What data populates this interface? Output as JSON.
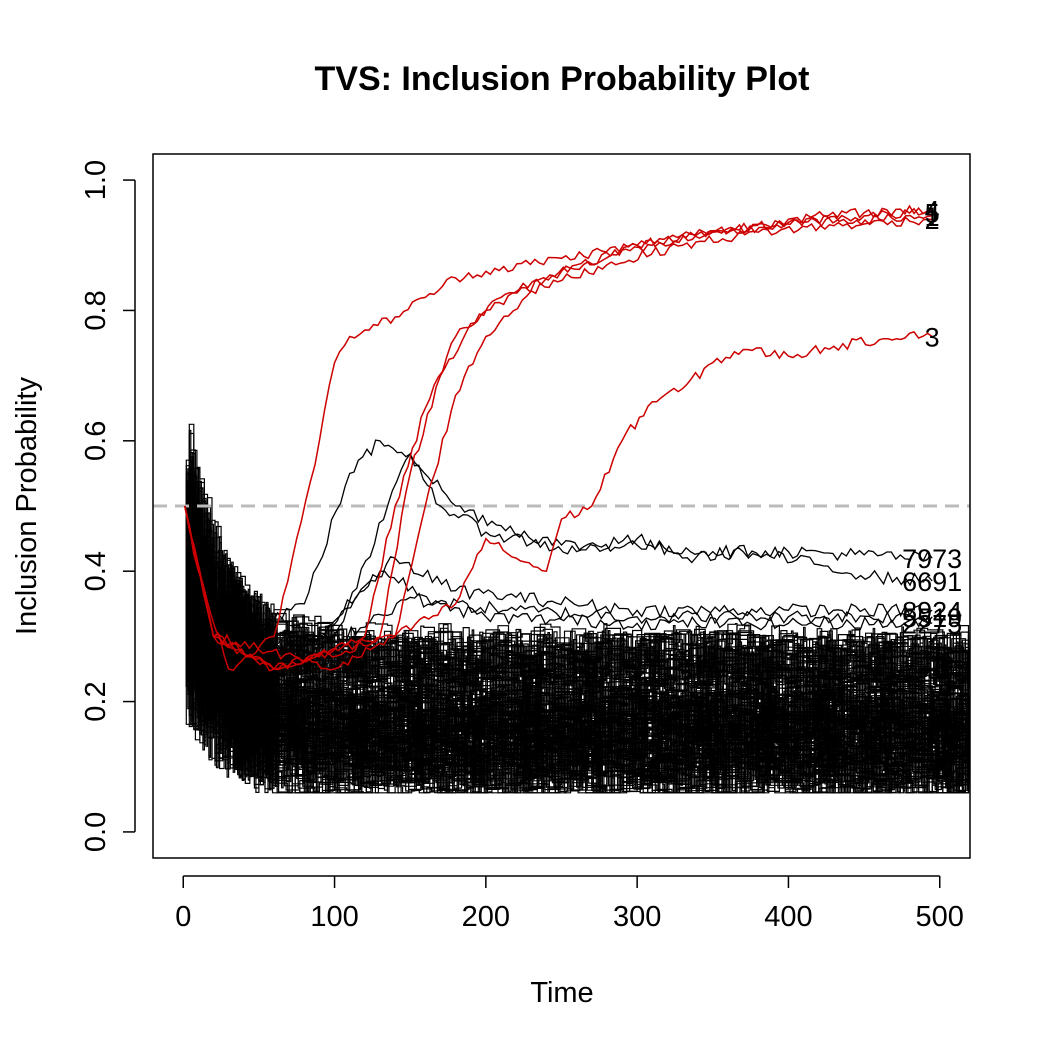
{
  "chart_data": {
    "type": "line",
    "title": "TVS: Inclusion Probability Plot",
    "xlabel": "Time",
    "ylabel": "Inclusion Probability",
    "xlim": [
      -20,
      520
    ],
    "ylim": [
      -0.04,
      1.04
    ],
    "x_ticks": [
      0,
      100,
      200,
      300,
      400,
      500
    ],
    "y_ticks": [
      0.0,
      0.2,
      0.4,
      0.6,
      0.8,
      1.0
    ],
    "y_tick_labels": [
      "0.0",
      "0.2",
      "0.4",
      "0.6",
      "0.8",
      "1.0"
    ],
    "threshold": 0.5,
    "threshold_color": "#bbbbbb",
    "colors": {
      "selected": "#cc0000",
      "other": "#000000"
    },
    "selected_series": [
      {
        "name": "4",
        "points": [
          [
            1,
            0.5
          ],
          [
            10,
            0.4
          ],
          [
            30,
            0.25
          ],
          [
            60,
            0.3
          ],
          [
            75,
            0.45
          ],
          [
            90,
            0.6
          ],
          [
            100,
            0.72
          ],
          [
            110,
            0.76
          ],
          [
            120,
            0.77
          ],
          [
            140,
            0.79
          ],
          [
            160,
            0.82
          ],
          [
            180,
            0.85
          ],
          [
            200,
            0.86
          ],
          [
            250,
            0.88
          ],
          [
            300,
            0.9
          ],
          [
            350,
            0.92
          ],
          [
            400,
            0.94
          ],
          [
            450,
            0.95
          ],
          [
            495,
            0.955
          ]
        ]
      },
      {
        "name": "5",
        "points": [
          [
            1,
            0.5
          ],
          [
            20,
            0.3
          ],
          [
            60,
            0.25
          ],
          [
            120,
            0.3
          ],
          [
            140,
            0.5
          ],
          [
            160,
            0.65
          ],
          [
            180,
            0.76
          ],
          [
            200,
            0.8
          ],
          [
            250,
            0.86
          ],
          [
            300,
            0.9
          ],
          [
            350,
            0.92
          ],
          [
            400,
            0.935
          ],
          [
            450,
            0.945
          ],
          [
            495,
            0.95
          ]
        ]
      },
      {
        "name": "1",
        "points": [
          [
            1,
            0.5
          ],
          [
            20,
            0.3
          ],
          [
            60,
            0.25
          ],
          [
            130,
            0.3
          ],
          [
            150,
            0.55
          ],
          [
            170,
            0.7
          ],
          [
            190,
            0.78
          ],
          [
            210,
            0.82
          ],
          [
            260,
            0.87
          ],
          [
            310,
            0.9
          ],
          [
            360,
            0.92
          ],
          [
            410,
            0.935
          ],
          [
            460,
            0.94
          ],
          [
            495,
            0.945
          ]
        ]
      },
      {
        "name": "2",
        "points": [
          [
            1,
            0.5
          ],
          [
            20,
            0.3
          ],
          [
            60,
            0.25
          ],
          [
            140,
            0.3
          ],
          [
            160,
            0.5
          ],
          [
            180,
            0.67
          ],
          [
            200,
            0.76
          ],
          [
            230,
            0.83
          ],
          [
            280,
            0.87
          ],
          [
            330,
            0.9
          ],
          [
            380,
            0.92
          ],
          [
            430,
            0.93
          ],
          [
            495,
            0.94
          ]
        ]
      },
      {
        "name": "3",
        "points": [
          [
            1,
            0.5
          ],
          [
            20,
            0.3
          ],
          [
            100,
            0.25
          ],
          [
            180,
            0.35
          ],
          [
            200,
            0.45
          ],
          [
            220,
            0.42
          ],
          [
            240,
            0.4
          ],
          [
            250,
            0.48
          ],
          [
            270,
            0.5
          ],
          [
            290,
            0.6
          ],
          [
            310,
            0.66
          ],
          [
            330,
            0.68
          ],
          [
            350,
            0.72
          ],
          [
            370,
            0.74
          ],
          [
            400,
            0.73
          ],
          [
            430,
            0.745
          ],
          [
            460,
            0.755
          ],
          [
            480,
            0.765
          ],
          [
            495,
            0.76
          ]
        ]
      }
    ],
    "other_series": [
      {
        "name": "7973",
        "points": [
          [
            1,
            0.5
          ],
          [
            30,
            0.3
          ],
          [
            80,
            0.35
          ],
          [
            110,
            0.55
          ],
          [
            130,
            0.6
          ],
          [
            150,
            0.58
          ],
          [
            180,
            0.5
          ],
          [
            210,
            0.47
          ],
          [
            250,
            0.44
          ],
          [
            300,
            0.44
          ],
          [
            350,
            0.43
          ],
          [
            400,
            0.43
          ],
          [
            450,
            0.425
          ],
          [
            495,
            0.42
          ]
        ]
      },
      {
        "name": "6691",
        "points": [
          [
            1,
            0.5
          ],
          [
            30,
            0.28
          ],
          [
            100,
            0.3
          ],
          [
            150,
            0.58
          ],
          [
            170,
            0.5
          ],
          [
            200,
            0.46
          ],
          [
            260,
            0.43
          ],
          [
            300,
            0.45
          ],
          [
            330,
            0.42
          ],
          [
            370,
            0.43
          ],
          [
            420,
            0.41
          ],
          [
            460,
            0.39
          ],
          [
            495,
            0.385
          ]
        ]
      },
      {
        "name": "8924",
        "points": [
          [
            1,
            0.5
          ],
          [
            30,
            0.25
          ],
          [
            90,
            0.3
          ],
          [
            140,
            0.42
          ],
          [
            180,
            0.37
          ],
          [
            220,
            0.36
          ],
          [
            300,
            0.34
          ],
          [
            400,
            0.34
          ],
          [
            495,
            0.34
          ]
        ]
      },
      {
        "name": "5519",
        "points": [
          [
            1,
            0.5
          ],
          [
            30,
            0.25
          ],
          [
            90,
            0.3
          ],
          [
            130,
            0.4
          ],
          [
            170,
            0.35
          ],
          [
            220,
            0.34
          ],
          [
            300,
            0.33
          ],
          [
            400,
            0.33
          ],
          [
            495,
            0.33
          ]
        ]
      },
      {
        "name": "2275",
        "points": [
          [
            1,
            0.5
          ],
          [
            30,
            0.25
          ],
          [
            90,
            0.28
          ],
          [
            150,
            0.36
          ],
          [
            200,
            0.33
          ],
          [
            300,
            0.32
          ],
          [
            400,
            0.32
          ],
          [
            495,
            0.32
          ]
        ]
      }
    ]
  }
}
